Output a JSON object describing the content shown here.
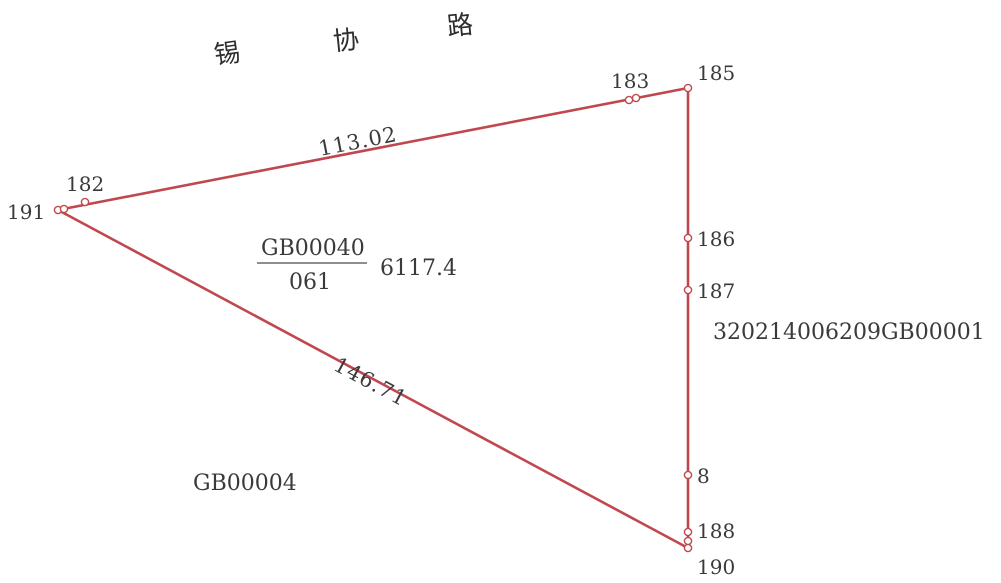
{
  "road": {
    "chars": [
      "锡",
      "协",
      "路"
    ]
  },
  "points": {
    "p183": "183",
    "p185": "185",
    "p182": "182",
    "p191": "191",
    "p186": "186",
    "p187": "187",
    "p8": "8",
    "p188": "188",
    "p190": "190"
  },
  "dimensions": {
    "top_edge": "113.02",
    "diagonal_edge": "146.71"
  },
  "parcel": {
    "code_numerator": "GB00040",
    "code_denominator": "061",
    "area": "6117.4"
  },
  "neighbors": {
    "east_parcel": "320214006209GB00001",
    "southwest_parcel": "GB00004"
  },
  "colors": {
    "boundary": "#c0474e",
    "text": "#3a3a3a"
  }
}
